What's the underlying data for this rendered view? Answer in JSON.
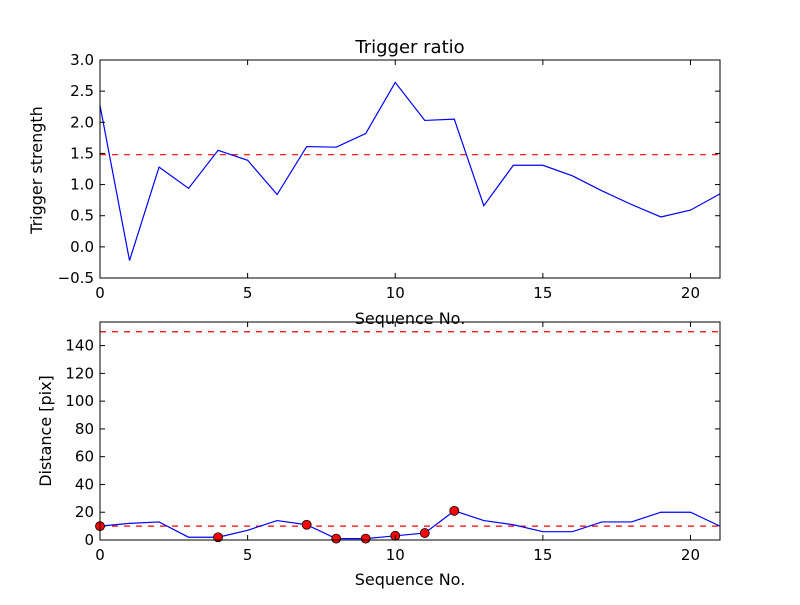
{
  "figure": {
    "background": "#ffffff"
  },
  "chart_data": [
    {
      "type": "line",
      "title": "Trigger ratio",
      "xlabel": "Sequence No.",
      "ylabel": "Trigger strength",
      "xlim": [
        0,
        21
      ],
      "ylim": [
        -0.5,
        3.0
      ],
      "xticks": [
        0,
        5,
        10,
        15,
        20
      ],
      "xtick_labels": [
        "0",
        "5",
        "10",
        "15",
        "20"
      ],
      "yticks": [
        -0.5,
        0.0,
        0.5,
        1.0,
        1.5,
        2.0,
        2.5,
        3.0
      ],
      "ytick_labels": [
        "−0.5",
        "0.0",
        "0.5",
        "1.0",
        "1.5",
        "2.0",
        "2.5",
        "3.0"
      ],
      "grid": false,
      "series": [
        {
          "style": "solid line",
          "color": "#0000ff",
          "x": [
            0,
            1,
            2,
            3,
            4,
            5,
            6,
            7,
            8,
            9,
            10,
            11,
            12,
            13,
            14,
            15,
            16,
            17,
            18,
            19,
            20,
            21
          ],
          "values": [
            2.27,
            -0.22,
            1.28,
            0.94,
            1.55,
            1.39,
            0.84,
            1.61,
            1.6,
            1.82,
            2.64,
            2.03,
            2.05,
            0.66,
            1.31,
            1.31,
            1.14,
            0.9,
            0.68,
            0.48,
            0.59,
            0.85
          ]
        }
      ],
      "reference_lines": [
        {
          "y": 1.48,
          "style": "dashed",
          "color": "#ff0000"
        }
      ]
    },
    {
      "type": "line",
      "title": "",
      "xlabel": "Sequence No.",
      "ylabel": "Distance [pix]",
      "xlim": [
        0,
        21
      ],
      "ylim": [
        0,
        157
      ],
      "xticks": [
        0,
        5,
        10,
        15,
        20
      ],
      "xtick_labels": [
        "0",
        "5",
        "10",
        "15",
        "20"
      ],
      "yticks": [
        0,
        20,
        40,
        60,
        80,
        100,
        120,
        140
      ],
      "ytick_labels": [
        "0",
        "20",
        "40",
        "60",
        "80",
        "100",
        "120",
        "140"
      ],
      "grid": false,
      "series": [
        {
          "style": "solid line",
          "color": "#0000ff",
          "x": [
            0,
            1,
            2,
            3,
            4,
            5,
            6,
            7,
            8,
            9,
            10,
            11,
            12,
            13,
            14,
            15,
            16,
            17,
            18,
            19,
            20,
            21
          ],
          "values": [
            10,
            12,
            13,
            2,
            2,
            7,
            14,
            11,
            1,
            1,
            3,
            5,
            21,
            14,
            11,
            6,
            6,
            13,
            13,
            20,
            20,
            10
          ]
        },
        {
          "style": "markers",
          "color": "#ff0000",
          "x": [
            0,
            4,
            7,
            8,
            9,
            10,
            11,
            12
          ],
          "values": [
            10,
            2,
            11,
            1,
            1,
            3,
            5,
            21
          ]
        }
      ],
      "reference_lines": [
        {
          "y": 150,
          "style": "dashed",
          "color": "#ff0000"
        },
        {
          "y": 10,
          "style": "dashed",
          "color": "#ff0000"
        }
      ]
    }
  ]
}
